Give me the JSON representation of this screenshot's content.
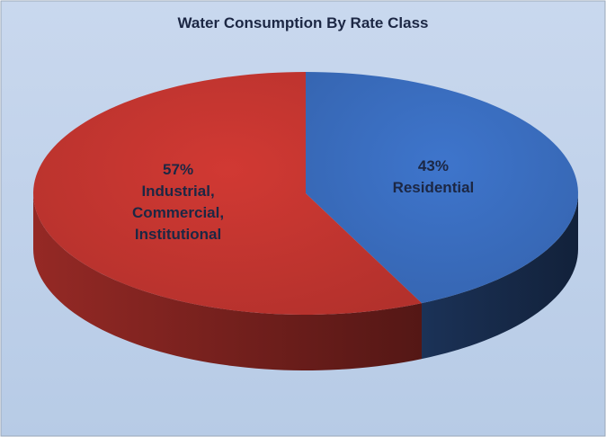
{
  "chart_data": {
    "type": "pie",
    "title": "Water Consumption By Rate Class",
    "categories": [
      "Residential",
      "Industrial, Commercial, Institutional"
    ],
    "values": [
      43,
      57
    ],
    "value_labels": [
      "43%",
      "57%"
    ],
    "colors": [
      "#3b6fc2",
      "#c73631"
    ]
  }
}
